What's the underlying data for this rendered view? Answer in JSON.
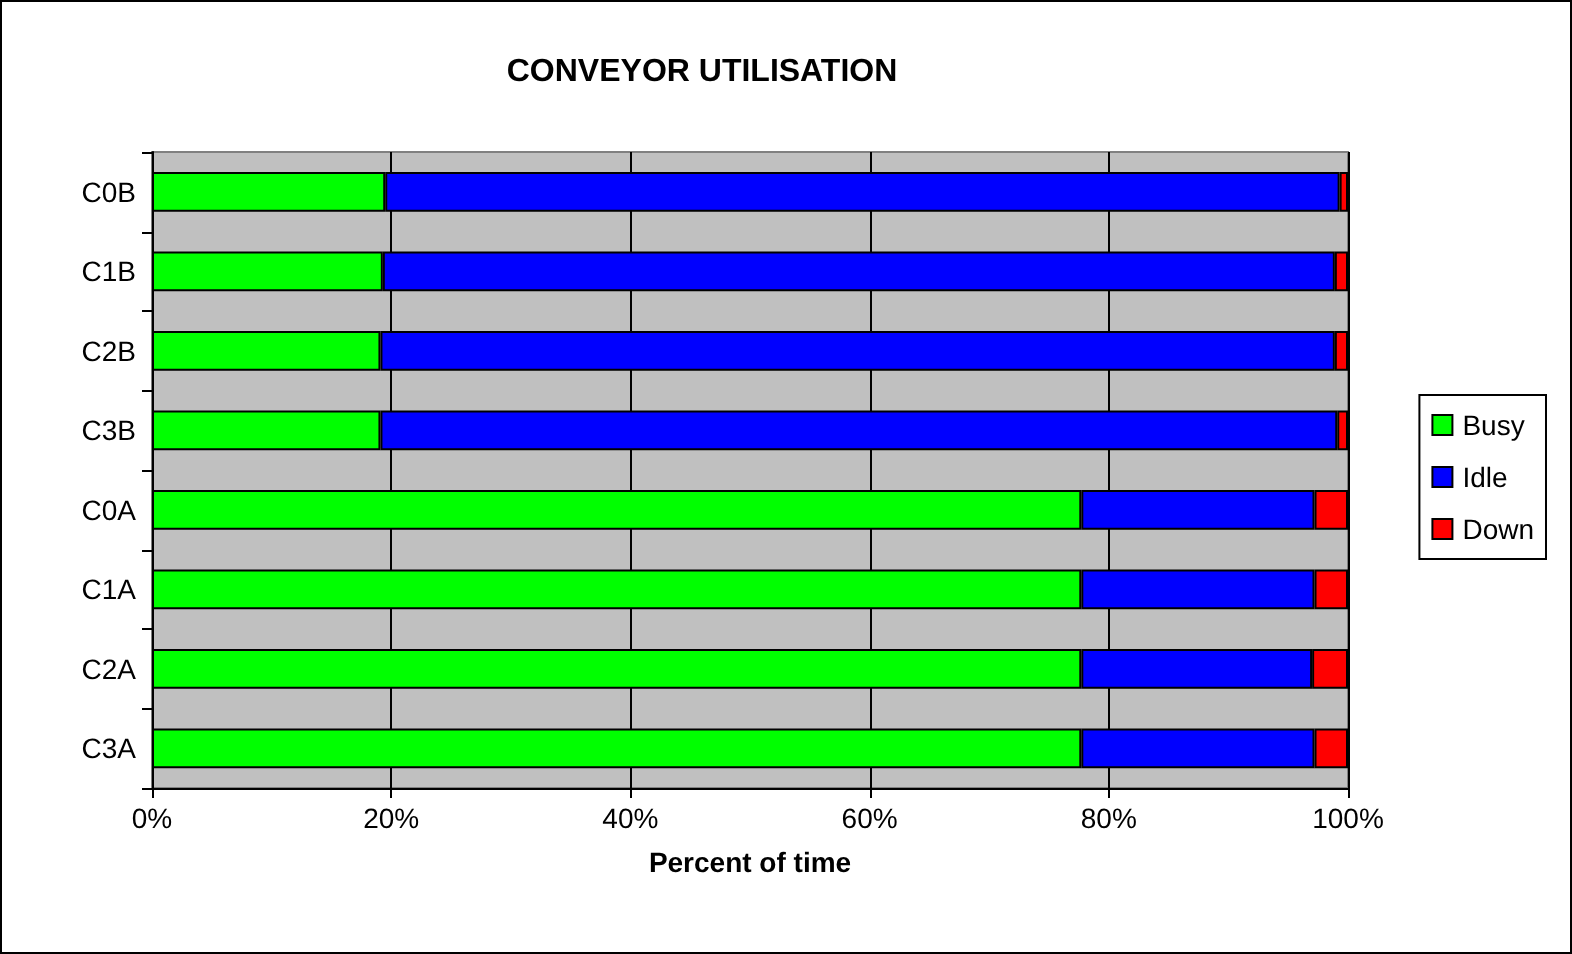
{
  "chart_data": {
    "type": "bar",
    "title": "CONVEYOR UTILISATION",
    "xlabel": "Percent of time",
    "orientation": "horizontal",
    "stacked": true,
    "categories": [
      "C0B",
      "C1B",
      "C2B",
      "C3B",
      "C0A",
      "C1A",
      "C2A",
      "C3A"
    ],
    "series": [
      {
        "name": "Busy",
        "color": "#00ff00",
        "values": [
          19.5,
          19.3,
          19.1,
          19.1,
          77.7,
          77.7,
          77.7,
          77.7
        ]
      },
      {
        "name": "Idle",
        "color": "#0000ff",
        "values": [
          79.8,
          79.6,
          79.8,
          80.0,
          19.5,
          19.5,
          19.3,
          19.5
        ]
      },
      {
        "name": "Down",
        "color": "#ff0000",
        "values": [
          0.7,
          1.1,
          1.1,
          0.9,
          2.8,
          2.8,
          3.0,
          2.8
        ]
      }
    ],
    "xlim": [
      0,
      100
    ],
    "xticks": [
      {
        "value": 0,
        "label": "0%"
      },
      {
        "value": 20,
        "label": "20%"
      },
      {
        "value": 40,
        "label": "40%"
      },
      {
        "value": 60,
        "label": "60%"
      },
      {
        "value": 80,
        "label": "80%"
      },
      {
        "value": 100,
        "label": "100%"
      }
    ],
    "grid": "x",
    "legend": "right"
  }
}
